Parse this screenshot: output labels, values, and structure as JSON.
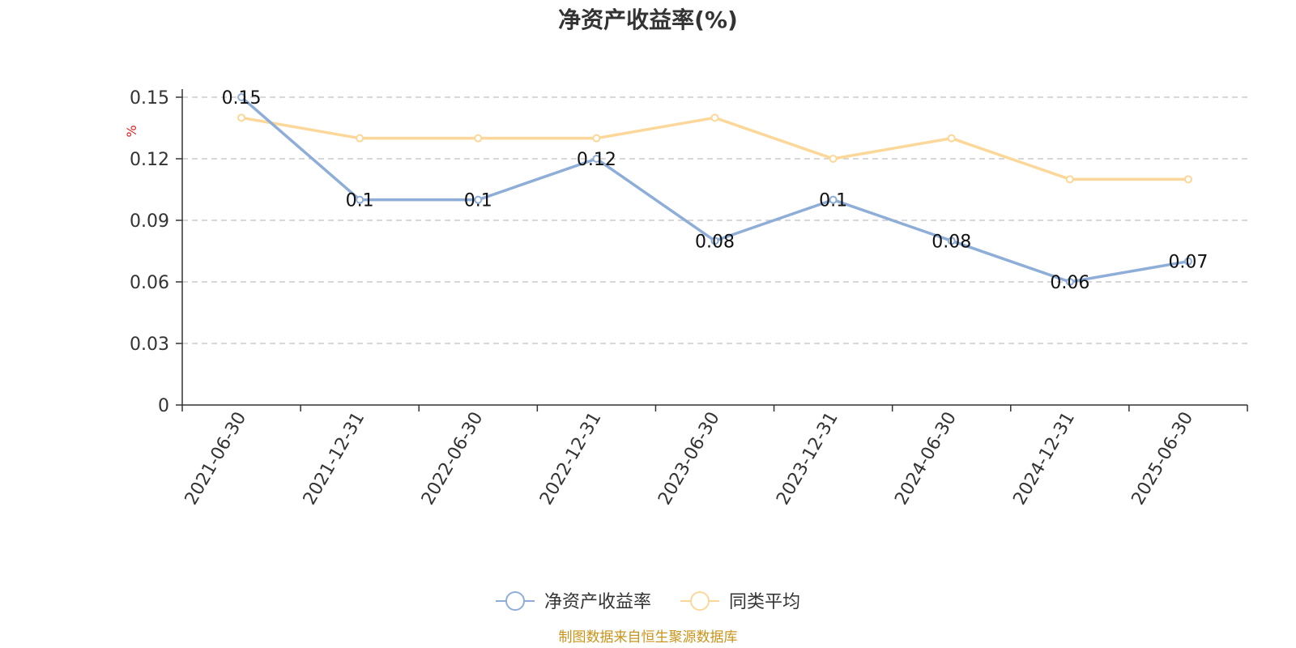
{
  "chart_data": {
    "type": "line",
    "title": "净资产收益率(%)",
    "y_unit": "%",
    "categories": [
      "2021-06-30",
      "2021-12-31",
      "2022-06-30",
      "2022-12-31",
      "2023-06-30",
      "2023-12-31",
      "2024-06-30",
      "2024-12-31",
      "2025-06-30"
    ],
    "ylim": [
      0,
      0.15
    ],
    "yticks": [
      "0",
      "0.03",
      "0.06",
      "0.09",
      "0.12",
      "0.15"
    ],
    "grid": true,
    "legend_position": "bottom-center",
    "series": [
      {
        "name": "净资产收益率",
        "color": "#8eaed8",
        "values": [
          0.15,
          0.1,
          0.1,
          0.12,
          0.08,
          0.1,
          0.08,
          0.06,
          0.07
        ],
        "labels": [
          "0.15",
          "0.1",
          "0.1",
          "0.12",
          "0.08",
          "0.1",
          "0.08",
          "0.06",
          "0.07"
        ]
      },
      {
        "name": "同类平均",
        "color": "#fbd899",
        "values": [
          0.14,
          0.13,
          0.13,
          0.13,
          0.14,
          0.12,
          0.13,
          0.11,
          0.11
        ]
      }
    ],
    "source": "制图数据来自恒生聚源数据库"
  }
}
